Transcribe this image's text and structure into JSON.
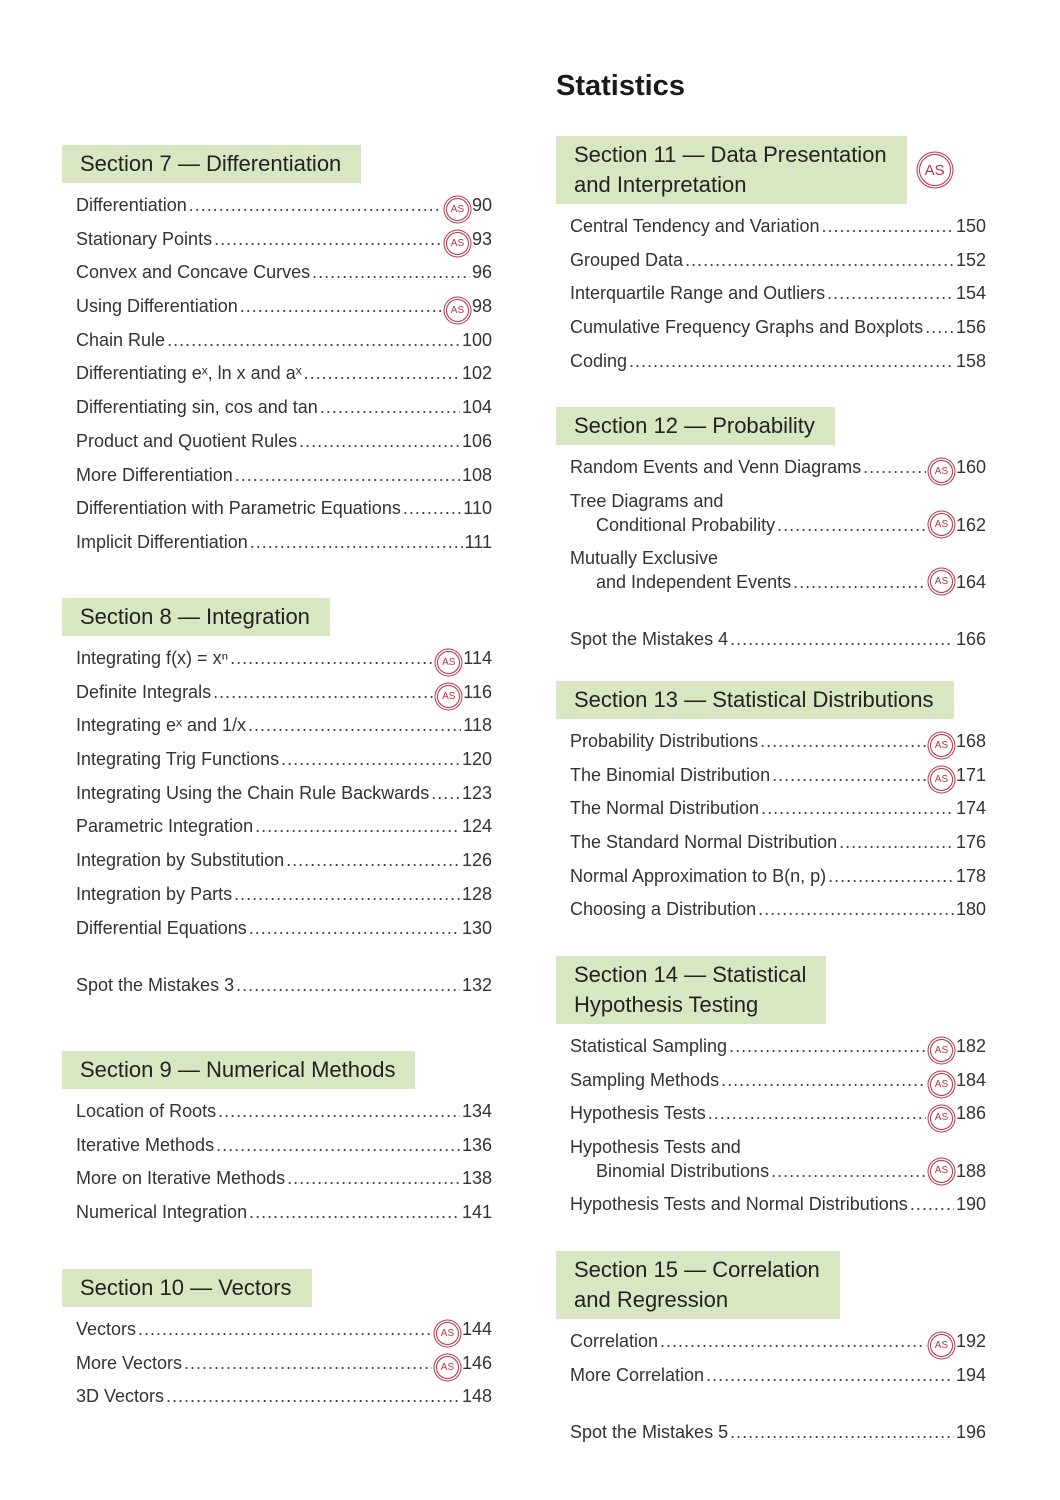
{
  "heading": "Statistics",
  "sections": [
    {
      "title": [
        "Section 7 — Differentiation"
      ],
      "entries": [
        {
          "title": "Differentiation",
          "badge": "AS",
          "page": 90
        },
        {
          "title": "Stationary Points",
          "badge": "AS",
          "page": 93
        },
        {
          "title": "Convex and Concave Curves",
          "page": 96
        },
        {
          "title": "Using Differentiation",
          "badge": "AS",
          "page": 98
        },
        {
          "title": "Chain Rule",
          "page": 100
        },
        {
          "title": "Differentiating eˣ, ln x and aˣ",
          "page": 102
        },
        {
          "title": "Differentiating sin, cos and tan",
          "page": 104
        },
        {
          "title": "Product and Quotient Rules",
          "page": 106
        },
        {
          "title": "More Differentiation",
          "page": 108
        },
        {
          "title": "Differentiation with Parametric Equations",
          "page": 110
        },
        {
          "title": "Implicit Differentiation",
          "page": 111
        }
      ]
    },
    {
      "title": [
        "Section 8 — Integration"
      ],
      "entries": [
        {
          "title": "Integrating f(x) = xⁿ",
          "badge": "AS",
          "page": 114
        },
        {
          "title": "Definite Integrals",
          "badge": "AS",
          "page": 116
        },
        {
          "title": "Integrating eˣ and 1/x",
          "page": 118
        },
        {
          "title": "Integrating Trig Functions",
          "page": 120
        },
        {
          "title": "Integrating Using the Chain Rule Backwards",
          "page": 123
        },
        {
          "title": "Parametric Integration",
          "page": 124
        },
        {
          "title": "Integration by Substitution",
          "page": 126
        },
        {
          "title": "Integration by Parts",
          "page": 128
        },
        {
          "title": "Differential Equations",
          "page": 130
        }
      ],
      "after": {
        "title": "Spot the Mistakes 3",
        "page": 132
      }
    },
    {
      "title": [
        "Section 9 — Numerical Methods"
      ],
      "entries": [
        {
          "title": "Location of Roots",
          "page": 134
        },
        {
          "title": "Iterative Methods",
          "page": 136
        },
        {
          "title": "More on Iterative Methods",
          "page": 138
        },
        {
          "title": "Numerical Integration",
          "page": 141
        }
      ]
    },
    {
      "title": [
        "Section 10 — Vectors"
      ],
      "entries": [
        {
          "title": "Vectors",
          "badge": "AS",
          "page": 144
        },
        {
          "title": "More Vectors",
          "badge": "AS",
          "page": 146
        },
        {
          "title": "3D Vectors",
          "page": 148
        }
      ]
    },
    {
      "title": [
        "Section 11 — Data Presentation",
        "and Interpretation"
      ],
      "badge": "AS",
      "entries": [
        {
          "title": "Central Tendency and Variation",
          "page": 150
        },
        {
          "title": "Grouped Data",
          "page": 152
        },
        {
          "title": "Interquartile Range and Outliers",
          "page": 154
        },
        {
          "title": "Cumulative Frequency Graphs and Boxplots",
          "page": 156
        },
        {
          "title": "Coding",
          "page": 158
        }
      ]
    },
    {
      "title": [
        "Section 12 — Probability"
      ],
      "entries": [
        {
          "title": "Random Events and Venn Diagrams",
          "badge": "AS",
          "page": 160
        },
        {
          "title": "Tree Diagrams and",
          "continued": "Conditional Probability",
          "badge": "AS",
          "page": 162
        },
        {
          "title": "Mutually Exclusive",
          "continued": "and Independent Events",
          "badge": "AS",
          "page": 164
        }
      ],
      "after": {
        "title": "Spot the Mistakes 4",
        "page": 166
      }
    },
    {
      "title": [
        "Section 13 — Statistical Distributions"
      ],
      "entries": [
        {
          "title": "Probability Distributions",
          "badge": "AS",
          "page": 168
        },
        {
          "title": "The Binomial Distribution",
          "badge": "AS",
          "page": 171
        },
        {
          "title": "The Normal Distribution",
          "page": 174
        },
        {
          "title": "The Standard Normal Distribution",
          "page": 176
        },
        {
          "title": "Normal Approximation to B(n, p)",
          "page": 178
        },
        {
          "title": "Choosing a Distribution",
          "page": 180
        }
      ]
    },
    {
      "title": [
        "Section 14 — Statistical",
        "Hypothesis Testing"
      ],
      "entries": [
        {
          "title": "Statistical Sampling",
          "badge": "AS",
          "page": 182
        },
        {
          "title": "Sampling Methods",
          "badge": "AS",
          "page": 184
        },
        {
          "title": "Hypothesis Tests",
          "badge": "AS",
          "page": 186
        },
        {
          "title": "Hypothesis Tests and",
          "continued": "Binomial Distributions",
          "badge": "AS",
          "page": 188
        },
        {
          "title": "Hypothesis Tests and Normal Distributions",
          "page": 190
        }
      ]
    },
    {
      "title": [
        "Section 15 — Correlation",
        "and Regression"
      ],
      "entries": [
        {
          "title": "Correlation",
          "badge": "AS",
          "page": 192
        },
        {
          "title": "More Correlation",
          "page": 194
        }
      ],
      "after": {
        "title": "Spot the Mistakes 5",
        "page": 196
      }
    }
  ]
}
